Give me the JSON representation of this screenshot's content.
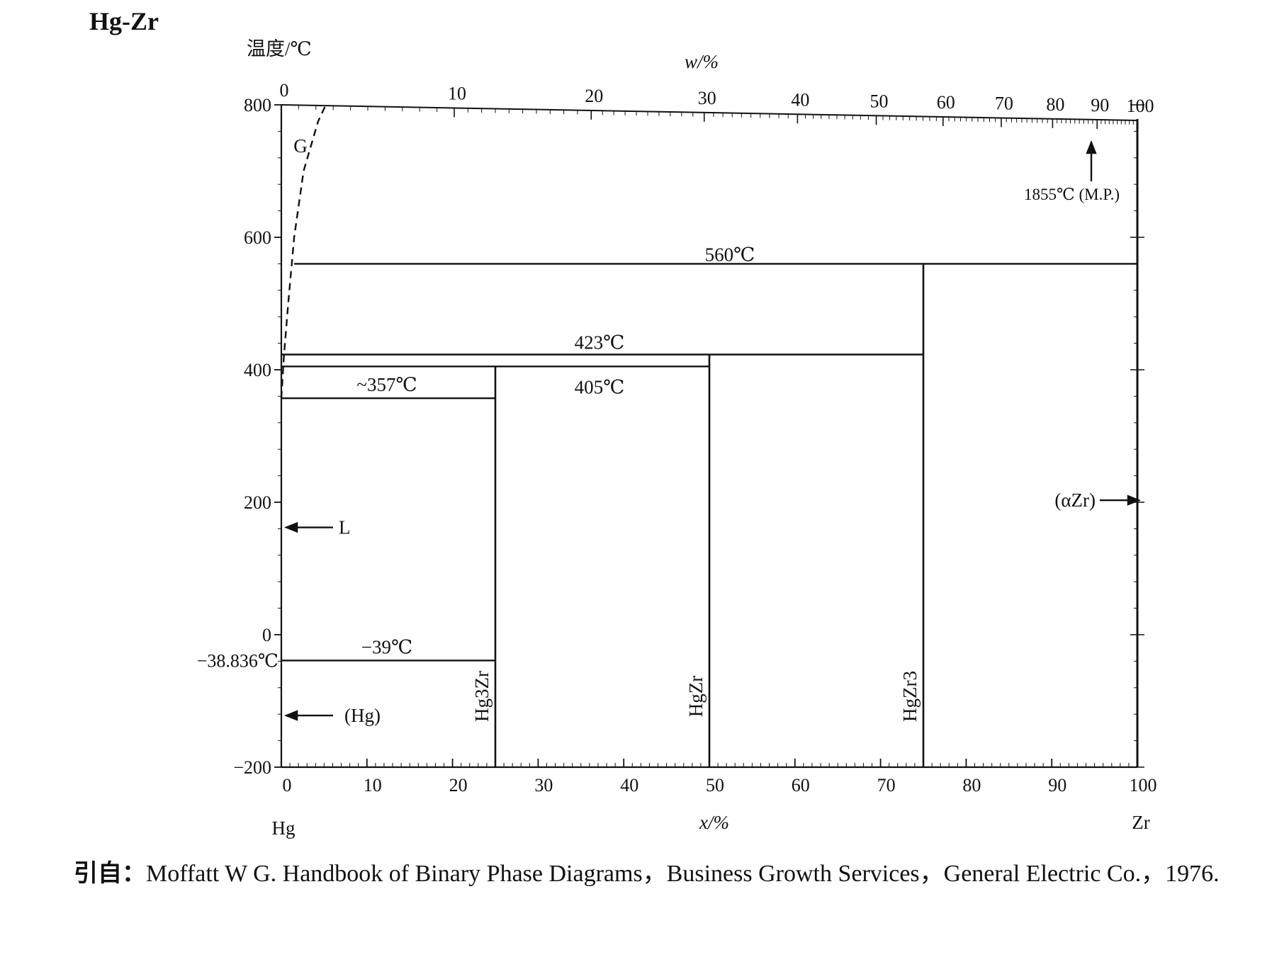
{
  "title": "Hg-Zr",
  "caption": {
    "source_label": "引自：",
    "text": "Moffatt W G.  Handbook of Binary Phase Diagrams，Business Growth Services，General Electric Co.，1976."
  },
  "chart_data": {
    "type": "phase-diagram",
    "system": "Hg-Zr",
    "ylabel": "温度/℃",
    "xlabel": "x/%",
    "top_xlabel": "w/%",
    "x_left_element": "Hg",
    "x_right_element": "Zr",
    "xlim": [
      0,
      100
    ],
    "ylim": [
      -200,
      800
    ],
    "x_ticks": [
      "0",
      "10",
      "20",
      "30",
      "40",
      "50",
      "60",
      "70",
      "80",
      "90",
      "100"
    ],
    "y_ticks": [
      "-200",
      "0",
      "200",
      "400",
      "600",
      "800"
    ],
    "top_ticks": [
      {
        "w": 0,
        "label": "0",
        "x": 0
      },
      {
        "w": 10,
        "label": "10",
        "x": 20.2
      },
      {
        "w": 20,
        "label": "20",
        "x": 36.2
      },
      {
        "w": 30,
        "label": "30",
        "x": 49.4
      },
      {
        "w": 40,
        "label": "40",
        "x": 60.3
      },
      {
        "w": 50,
        "label": "50",
        "x": 69.5
      },
      {
        "w": 60,
        "label": "60",
        "x": 77.3
      },
      {
        "w": 70,
        "label": "70",
        "x": 84.1
      },
      {
        "w": 80,
        "label": "80",
        "x": 90.1
      },
      {
        "w": 90,
        "label": "90",
        "x": 95.3
      },
      {
        "w": 100,
        "label": "100",
        "x": 100
      }
    ],
    "isotherms": [
      {
        "label": "560℃",
        "t": 560,
        "x_from": 1.5,
        "x_to": 100
      },
      {
        "label": "423℃",
        "t": 423,
        "x_from": 0,
        "x_to": 75
      },
      {
        "label": "405℃",
        "t": 405,
        "x_from": 0,
        "x_to": 50
      },
      {
        "label": "~357℃",
        "t": 357,
        "x_from": 0,
        "x_to": 25
      },
      {
        "label": "−39℃",
        "t": -39,
        "x_from": 0,
        "x_to": 25
      }
    ],
    "compounds": [
      {
        "name": "Hg3Zr",
        "x": 25,
        "t_top": 405
      },
      {
        "name": "HgZr",
        "x": 50,
        "t_top": 423
      },
      {
        "name": "HgZr3",
        "x": 75,
        "t_top": 560
      }
    ],
    "boiling_curve": [
      [
        0,
        357
      ],
      [
        0.3,
        420
      ],
      [
        0.8,
        500
      ],
      [
        1.5,
        600
      ],
      [
        2.6,
        700
      ],
      [
        4.3,
        775
      ],
      [
        5.2,
        800
      ]
    ],
    "phase_labels": [
      {
        "text": "G",
        "arrow": "none"
      },
      {
        "text": "L",
        "arrow": "left"
      },
      {
        "text": "(Hg)",
        "arrow": "left"
      },
      {
        "text": "(αZr)",
        "arrow": "right"
      }
    ],
    "annotations": [
      {
        "text": "1855℃ (M.P.)"
      },
      {
        "text": "−38.836℃",
        "t": -38.836
      }
    ]
  }
}
